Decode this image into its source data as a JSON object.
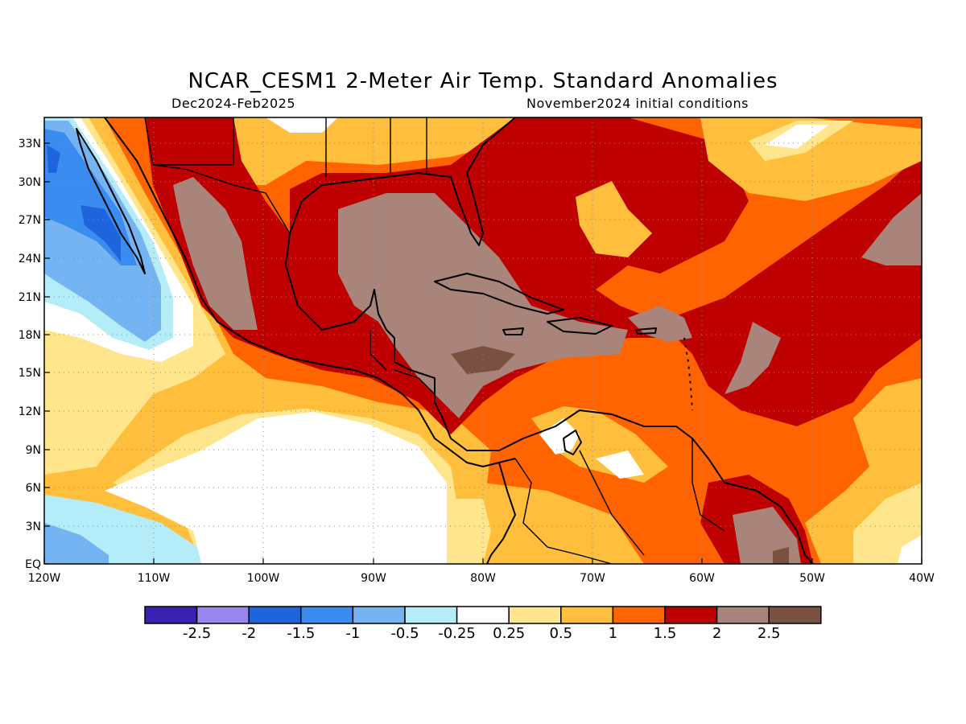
{
  "title": "NCAR_CESM1 2-Meter Air Temp. Standard Anomalies",
  "subtitle_left": "Dec2024-Feb2025",
  "subtitle_right": "November2024 initial conditions",
  "lat_labels": [
    "33N",
    "30N",
    "27N",
    "24N",
    "21N",
    "18N",
    "15N",
    "12N",
    "9N",
    "6N",
    "3N",
    "EQ"
  ],
  "lon_labels": [
    "120W",
    "110W",
    "100W",
    "90W",
    "80W",
    "70W",
    "60W",
    "50W",
    "40W"
  ],
  "map_extent": {
    "lon": [
      -120,
      -40
    ],
    "lat": [
      0,
      35
    ]
  },
  "colorbar": {
    "colors": [
      "#3c1fb4",
      "#9b86f0",
      "#1e64dc",
      "#3a8cf0",
      "#74b4f2",
      "#b4ecf8",
      "#ffffff",
      "#ffe68c",
      "#ffbe3c",
      "#ff6400",
      "#bf0000",
      "#a8847a",
      "#7a5040"
    ],
    "labels": [
      "-2.5",
      "-2",
      "-1.5",
      "-1",
      "-0.5",
      "-0.25",
      "0.25",
      "0.5",
      "1",
      "1.5",
      "2",
      "2.5"
    ]
  }
}
